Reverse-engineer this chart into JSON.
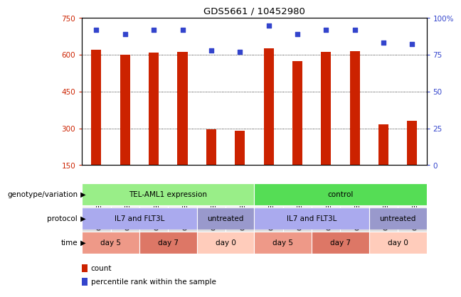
{
  "title": "GDS5661 / 10452980",
  "samples": [
    "GSM1583307",
    "GSM1583308",
    "GSM1583309",
    "GSM1583310",
    "GSM1583305",
    "GSM1583306",
    "GSM1583301",
    "GSM1583302",
    "GSM1583303",
    "GSM1583304",
    "GSM1583299",
    "GSM1583300"
  ],
  "bar_values": [
    620,
    600,
    610,
    612,
    295,
    290,
    625,
    575,
    612,
    614,
    315,
    330
  ],
  "percentile_values": [
    92,
    89,
    92,
    92,
    78,
    77,
    95,
    89,
    92,
    92,
    83,
    82
  ],
  "ylim_left": [
    150,
    750
  ],
  "ylim_right": [
    0,
    100
  ],
  "yticks_left": [
    150,
    300,
    450,
    600,
    750
  ],
  "yticks_right": [
    0,
    25,
    50,
    75,
    100
  ],
  "grid_values": [
    300,
    450,
    600
  ],
  "bar_color": "#cc2200",
  "dot_color": "#3344cc",
  "bg_color": "#ffffff",
  "annotation_rows": [
    {
      "label": "genotype/variation",
      "segments": [
        {
          "text": "TEL-AML1 expression",
          "start": 0,
          "end": 6,
          "color": "#99ee88"
        },
        {
          "text": "control",
          "start": 6,
          "end": 12,
          "color": "#55dd55"
        }
      ]
    },
    {
      "label": "protocol",
      "segments": [
        {
          "text": "IL7 and FLT3L",
          "start": 0,
          "end": 4,
          "color": "#aaaaee"
        },
        {
          "text": "untreated",
          "start": 4,
          "end": 6,
          "color": "#9999cc"
        },
        {
          "text": "IL7 and FLT3L",
          "start": 6,
          "end": 10,
          "color": "#aaaaee"
        },
        {
          "text": "untreated",
          "start": 10,
          "end": 12,
          "color": "#9999cc"
        }
      ]
    },
    {
      "label": "time",
      "segments": [
        {
          "text": "day 5",
          "start": 0,
          "end": 2,
          "color": "#ee9988"
        },
        {
          "text": "day 7",
          "start": 2,
          "end": 4,
          "color": "#dd7766"
        },
        {
          "text": "day 0",
          "start": 4,
          "end": 6,
          "color": "#ffccbb"
        },
        {
          "text": "day 5",
          "start": 6,
          "end": 8,
          "color": "#ee9988"
        },
        {
          "text": "day 7",
          "start": 8,
          "end": 10,
          "color": "#dd7766"
        },
        {
          "text": "day 0",
          "start": 10,
          "end": 12,
          "color": "#ffccbb"
        }
      ]
    }
  ],
  "legend_items": [
    {
      "label": "count",
      "color": "#cc2200"
    },
    {
      "label": "percentile rank within the sample",
      "color": "#3344cc"
    }
  ]
}
